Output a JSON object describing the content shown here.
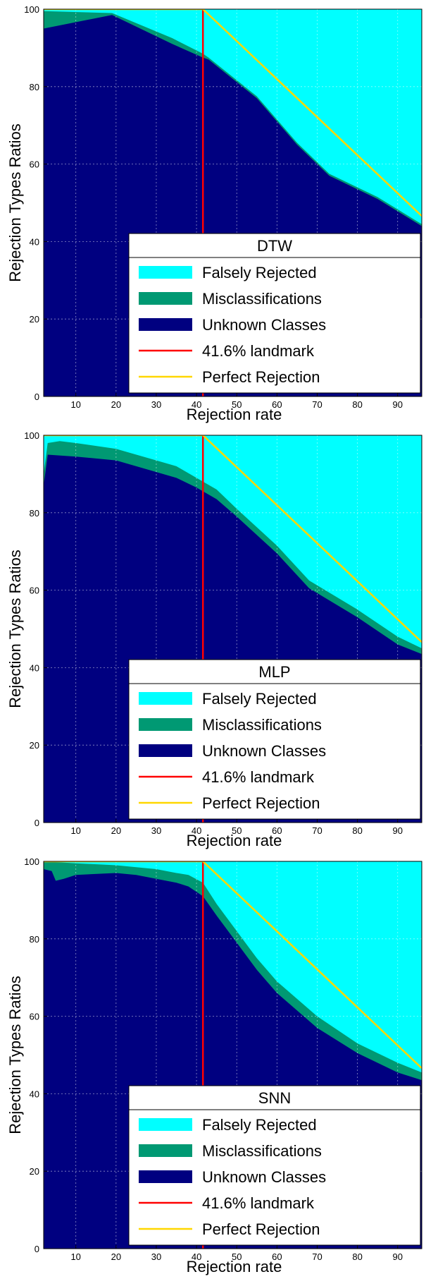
{
  "chart_data": [
    {
      "type": "area",
      "title": "DTW",
      "xlabel": "Rejection rate",
      "ylabel": "Rejection Types Ratios",
      "xlim": [
        2,
        96
      ],
      "ylim": [
        0,
        100
      ],
      "xticks": [
        10,
        20,
        30,
        40,
        50,
        60,
        70,
        80,
        90
      ],
      "yticks": [
        0,
        20,
        40,
        60,
        80,
        100
      ],
      "grid": true,
      "legend_position": "bottom-right",
      "series": [
        {
          "name": "Unknown Classes",
          "color": "#000080",
          "x": [
            2,
            19,
            34,
            41.6,
            43,
            55,
            65,
            73,
            85,
            96
          ],
          "y": [
            95,
            98.5,
            91,
            87.5,
            87,
            77,
            65,
            57,
            51,
            44
          ]
        },
        {
          "name": "Misclassifications",
          "color": "#009973",
          "x": [
            2,
            19,
            34,
            41.6,
            43,
            55,
            65,
            73,
            85,
            96
          ],
          "y": [
            99.5,
            99,
            92.5,
            88.5,
            87.5,
            77.5,
            65.5,
            57.5,
            51.5,
            44.5
          ]
        },
        {
          "name": "Falsely Rejected",
          "color": "#00ffff",
          "x": [
            2,
            96
          ],
          "y": [
            100,
            100
          ]
        }
      ],
      "lines": [
        {
          "name": "41.6% landmark",
          "color": "#ff0000",
          "x": [
            41.6,
            41.6
          ],
          "y": [
            0,
            100
          ]
        },
        {
          "name": "Perfect Rejection",
          "color": "#ffd700",
          "x": [
            2,
            41.6,
            96
          ],
          "y": [
            100,
            100,
            46.6
          ]
        }
      ]
    },
    {
      "type": "area",
      "title": "MLP",
      "xlabel": "Rejection rate",
      "ylabel": "Rejection Types Ratios",
      "xlim": [
        2,
        96
      ],
      "ylim": [
        0,
        100
      ],
      "xticks": [
        10,
        20,
        30,
        40,
        50,
        60,
        70,
        80,
        90
      ],
      "yticks": [
        0,
        20,
        40,
        60,
        80,
        100
      ],
      "grid": true,
      "legend_position": "bottom-right",
      "series": [
        {
          "name": "Unknown Classes",
          "color": "#000080",
          "x": [
            2,
            3,
            10,
            20,
            30,
            35,
            40,
            45,
            50,
            60,
            68,
            80,
            90,
            96
          ],
          "y": [
            87,
            95,
            94.5,
            93.5,
            90.5,
            89,
            86.5,
            83.5,
            79,
            69.5,
            60.5,
            53,
            46,
            43.5
          ]
        },
        {
          "name": "Misclassifications",
          "color": "#009973",
          "x": [
            2,
            3,
            6,
            10,
            20,
            30,
            35,
            40,
            45,
            50,
            60,
            68,
            80,
            90,
            96
          ],
          "y": [
            90,
            98,
            98.5,
            98,
            96.5,
            93.5,
            92,
            89,
            86,
            81,
            71.5,
            62.5,
            55,
            48,
            45
          ]
        },
        {
          "name": "Falsely Rejected",
          "color": "#00ffff",
          "x": [
            2,
            96
          ],
          "y": [
            100,
            100
          ]
        }
      ],
      "lines": [
        {
          "name": "41.6% landmark",
          "color": "#ff0000",
          "x": [
            41.6,
            41.6
          ],
          "y": [
            0,
            100
          ]
        },
        {
          "name": "Perfect Rejection",
          "color": "#ffd700",
          "x": [
            2,
            41.6,
            96
          ],
          "y": [
            100,
            100,
            46.6
          ]
        }
      ]
    },
    {
      "type": "area",
      "title": "SNN",
      "xlabel": "Rejection rate",
      "ylabel": "Rejection Types Ratios",
      "xlim": [
        2,
        96
      ],
      "ylim": [
        0,
        100
      ],
      "xticks": [
        10,
        20,
        30,
        40,
        50,
        60,
        70,
        80,
        90
      ],
      "yticks": [
        0,
        20,
        40,
        60,
        80,
        100
      ],
      "grid": true,
      "legend_position": "bottom-right",
      "series": [
        {
          "name": "Unknown Classes",
          "color": "#000080",
          "x": [
            2,
            4,
            5,
            7,
            10,
            20,
            25,
            30,
            35,
            38,
            41.6,
            45,
            50,
            55,
            60,
            70,
            80,
            90,
            96
          ],
          "y": [
            98,
            97.5,
            95,
            95.5,
            96.5,
            97,
            96.5,
            95.5,
            94.5,
            93.5,
            91,
            86,
            79,
            72,
            66,
            57,
            50.5,
            45.5,
            43.5
          ]
        },
        {
          "name": "Misclassifications",
          "color": "#009973",
          "x": [
            2,
            10,
            20,
            25,
            30,
            35,
            38,
            41.6,
            45,
            50,
            55,
            60,
            70,
            80,
            90,
            96
          ],
          "y": [
            100,
            99.5,
            99,
            98.5,
            98,
            97,
            96.5,
            94.5,
            89,
            82,
            75,
            69,
            60,
            53,
            48,
            45.5
          ]
        },
        {
          "name": "Falsely Rejected",
          "color": "#00ffff",
          "x": [
            2,
            96
          ],
          "y": [
            100,
            100
          ]
        }
      ],
      "lines": [
        {
          "name": "41.6% landmark",
          "color": "#ff0000",
          "x": [
            41.6,
            41.6
          ],
          "y": [
            0,
            100
          ]
        },
        {
          "name": "Perfect Rejection",
          "color": "#ffd700",
          "x": [
            2,
            41.6,
            96
          ],
          "y": [
            100,
            100,
            46.6
          ]
        }
      ]
    }
  ]
}
